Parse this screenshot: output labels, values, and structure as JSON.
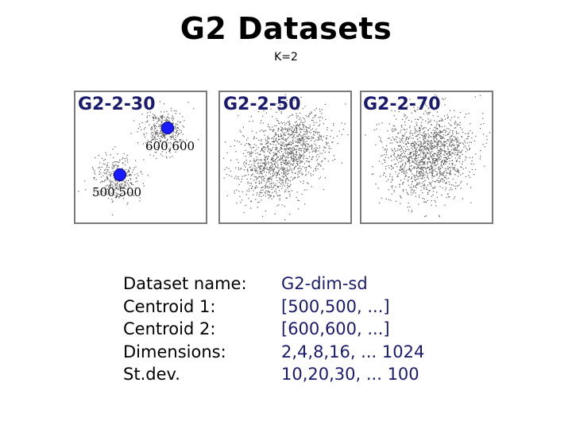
{
  "title": "G2 Datasets",
  "subtitle": "K=2",
  "panels": [
    {
      "label": "G2-2-30"
    },
    {
      "label": "G2-2-50"
    },
    {
      "label": "G2-2-70"
    }
  ],
  "centroids": [
    {
      "label": "600,600"
    },
    {
      "label": "500,500"
    }
  ],
  "info": {
    "labels": [
      "Dataset name:",
      "Centroid 1:",
      "Centroid 2:",
      "Dimensions:",
      "St.dev."
    ],
    "values": [
      "G2-dim-sd",
      "[500,500, ...]",
      "[600,600, ...]",
      "2,4,8,16, ... 1024",
      "10,20,30, ... 100"
    ]
  },
  "colors": {
    "points": "#555555",
    "centroid": "#1a1aff",
    "labels": "#1a1a6e"
  }
}
